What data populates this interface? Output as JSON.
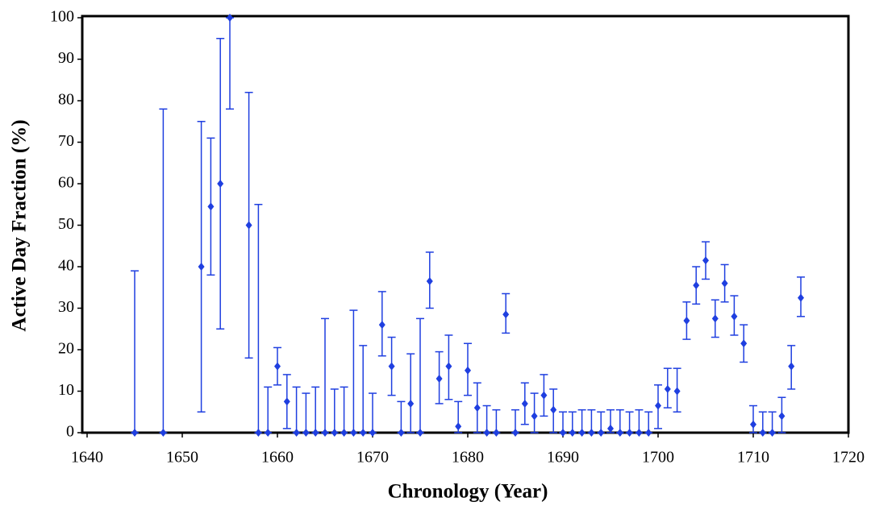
{
  "chart_data": {
    "type": "scatter",
    "xlabel": "Chronology (Year)",
    "ylabel": "Active Day Fraction (%)",
    "color": "#1f3fe0",
    "xlim": [
      1640,
      1720
    ],
    "xticks": [
      1640,
      1650,
      1660,
      1670,
      1680,
      1690,
      1700,
      1710,
      1720
    ],
    "ylim": [
      0,
      100
    ],
    "yticks": [
      0,
      10,
      20,
      30,
      40,
      50,
      60,
      70,
      80,
      90,
      100
    ],
    "x": [
      1645,
      1648,
      1652,
      1653,
      1654,
      1655,
      1657,
      1658,
      1659,
      1660,
      1661,
      1662,
      1663,
      1664,
      1665,
      1666,
      1667,
      1668,
      1669,
      1670,
      1671,
      1672,
      1673,
      1674,
      1675,
      1676,
      1677,
      1678,
      1679,
      1680,
      1681,
      1682,
      1683,
      1684,
      1685,
      1686,
      1687,
      1688,
      1689,
      1690,
      1691,
      1692,
      1693,
      1694,
      1695,
      1696,
      1697,
      1698,
      1699,
      1700,
      1701,
      1702,
      1703,
      1704,
      1705,
      1706,
      1707,
      1708,
      1709,
      1710,
      1711,
      1712,
      1713,
      1714,
      1715
    ],
    "values": [
      0,
      0,
      40,
      54.5,
      60,
      100,
      50,
      0,
      0,
      16,
      7.5,
      0,
      0,
      0,
      0,
      0,
      0,
      0,
      0,
      0,
      26,
      16,
      0,
      7,
      0,
      36.5,
      13,
      16,
      1.5,
      15,
      6,
      0,
      0,
      28.5,
      0,
      7,
      4,
      9,
      5.5,
      0,
      0,
      0,
      0,
      0,
      1,
      0,
      0,
      0,
      0,
      6.5,
      10.5,
      10,
      27,
      35.5,
      41.5,
      27.5,
      36,
      28,
      21.5,
      2,
      0,
      0,
      4,
      16,
      32.5
    ],
    "lower": [
      0,
      0,
      5,
      38,
      25,
      78,
      18,
      0,
      0,
      11.5,
      1,
      0,
      0,
      0,
      0,
      0,
      0,
      0,
      0,
      0,
      18.5,
      9,
      0,
      0,
      0,
      30,
      7,
      8,
      0,
      9,
      0,
      0,
      0,
      24,
      0,
      2,
      0,
      4,
      0,
      0,
      0,
      0,
      0,
      0,
      0,
      0,
      0,
      0,
      0,
      1,
      6,
      5,
      22.5,
      31,
      37,
      23,
      31.5,
      23.5,
      17,
      0,
      0,
      0,
      0,
      10.5,
      28
    ],
    "upper": [
      39,
      78,
      75,
      71,
      95,
      100,
      82,
      55,
      11,
      20.5,
      14,
      11,
      9.5,
      11,
      27.5,
      10.5,
      11,
      29.5,
      21,
      9.5,
      34,
      23,
      7.5,
      19,
      27.5,
      43.5,
      19.5,
      23.5,
      7.5,
      21.5,
      12,
      6.5,
      5.5,
      33.5,
      5.5,
      12,
      9.5,
      14,
      10.5,
      5,
      5,
      5.5,
      5.5,
      5,
      5.5,
      5.5,
      5,
      5.5,
      5,
      11.5,
      15.5,
      15.5,
      31.5,
      40,
      46,
      32,
      40.5,
      33,
      26,
      6.5,
      5,
      5,
      8.5,
      21,
      37.5
    ]
  }
}
